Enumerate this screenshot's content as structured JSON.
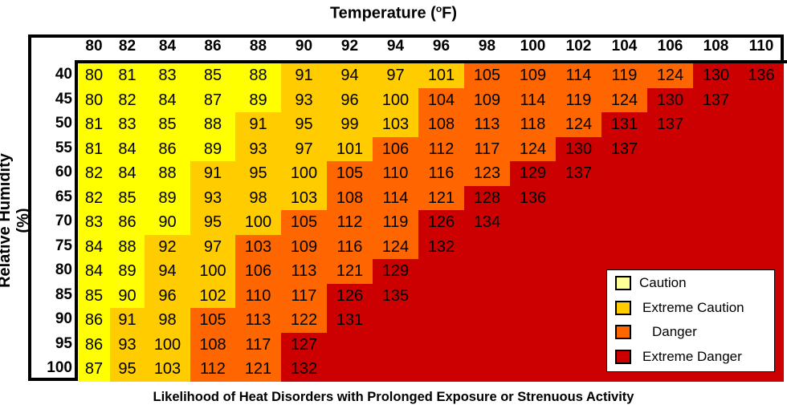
{
  "chart_data": {
    "type": "heatmap",
    "title": "Temperature (°F)",
    "title_main": "Temperature (",
    "title_sup": "o",
    "title_end": "F)",
    "xlabel": "Temperature (°F)",
    "ylabel": "Relative Humidity (%)",
    "caption": "Likelihood of Heat Disorders with Prolonged Exposure or Strenuous Activity",
    "x": [
      80,
      82,
      84,
      86,
      88,
      90,
      92,
      94,
      96,
      98,
      100,
      102,
      104,
      106,
      108,
      110
    ],
    "y": [
      40,
      45,
      50,
      55,
      60,
      65,
      70,
      75,
      80,
      85,
      90,
      95,
      100
    ],
    "values": [
      [
        80,
        81,
        83,
        85,
        88,
        91,
        94,
        97,
        101,
        105,
        109,
        114,
        119,
        124,
        130,
        136
      ],
      [
        80,
        82,
        84,
        87,
        89,
        93,
        96,
        100,
        104,
        109,
        114,
        119,
        124,
        130,
        137,
        null
      ],
      [
        81,
        83,
        85,
        88,
        91,
        95,
        99,
        103,
        108,
        113,
        118,
        124,
        131,
        137,
        null,
        null
      ],
      [
        81,
        84,
        86,
        89,
        93,
        97,
        101,
        106,
        112,
        117,
        124,
        130,
        137,
        null,
        null,
        null
      ],
      [
        82,
        84,
        88,
        91,
        95,
        100,
        105,
        110,
        116,
        123,
        129,
        137,
        null,
        null,
        null,
        null
      ],
      [
        82,
        85,
        89,
        93,
        98,
        103,
        108,
        114,
        121,
        128,
        136,
        null,
        null,
        null,
        null,
        null
      ],
      [
        83,
        86,
        90,
        95,
        100,
        105,
        112,
        119,
        126,
        134,
        null,
        null,
        null,
        null,
        null,
        null
      ],
      [
        84,
        88,
        92,
        97,
        103,
        109,
        116,
        124,
        132,
        null,
        null,
        null,
        null,
        null,
        null,
        null
      ],
      [
        84,
        89,
        94,
        100,
        106,
        113,
        121,
        129,
        null,
        null,
        null,
        null,
        null,
        null,
        null,
        null
      ],
      [
        85,
        90,
        96,
        102,
        110,
        117,
        126,
        135,
        null,
        null,
        null,
        null,
        null,
        null,
        null,
        null
      ],
      [
        86,
        91,
        98,
        105,
        113,
        122,
        131,
        null,
        null,
        null,
        null,
        null,
        null,
        null,
        null,
        null
      ],
      [
        86,
        93,
        100,
        108,
        117,
        127,
        null,
        null,
        null,
        null,
        null,
        null,
        null,
        null,
        null,
        null
      ],
      [
        87,
        95,
        103,
        112,
        121,
        132,
        null,
        null,
        null,
        null,
        null,
        null,
        null,
        null,
        null,
        null
      ]
    ],
    "categories_grid": [
      "CCCCCEEEEDDDDDXX",
      "CCCCCEEEDDDDDXXX",
      "CCCCEEEEDDDDXXXX",
      "CCCCEEEDDDDXXXXX",
      "CCCEEEDDDDXXXXXX",
      "CCCEEEDDDXXXXXXX",
      "CCCEEDDDXXXXXXXX",
      "CCEEDDDDXXXXXXXX",
      "CCEEDDDXXXXXXXXX",
      "CCEEDDXXXXXXXXXX",
      "CEEDDDXXXXXXXXXX",
      "CEEDDXXXXXXXXXXX",
      "CEEDDXXXXXXXXXXX"
    ],
    "legend": [
      {
        "key": "C",
        "label": "Caution",
        "color": "#FFFF00",
        "swatch": "#FFFF99"
      },
      {
        "key": "E",
        "label": "Extreme Caution",
        "color": "#FFCC00",
        "swatch": "#FFCC00"
      },
      {
        "key": "D",
        "label": "Danger",
        "color": "#FF6600",
        "swatch": "#FF6600"
      },
      {
        "key": "X",
        "label": "Extreme Danger",
        "color": "#CC0000",
        "swatch": "#CC0000"
      }
    ],
    "legend_position": "lower-right"
  }
}
